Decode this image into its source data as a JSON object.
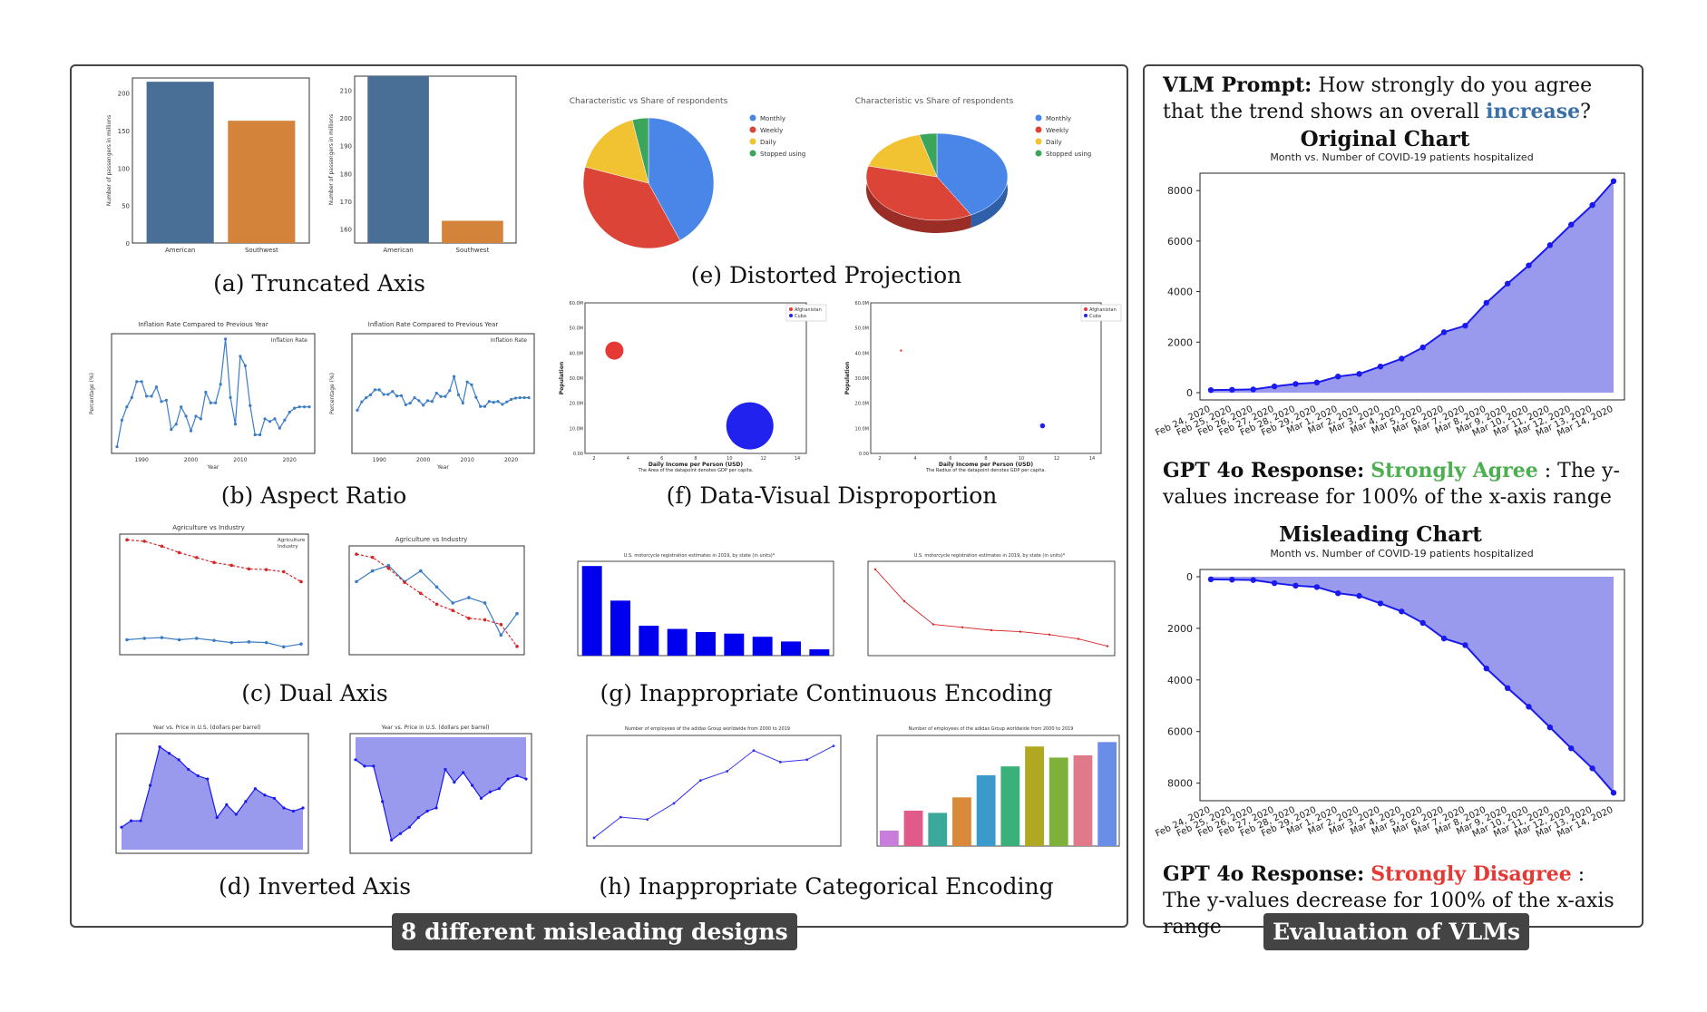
{
  "left": {
    "badge": "8 different misleading designs",
    "captions": {
      "a": "(a) Truncated Axis",
      "b": "(b) Aspect Ratio",
      "c": "(c) Dual Axis",
      "d": "(d) Inverted Axis",
      "e": "(e) Distorted Projection",
      "f": "(f) Data-Visual Disproportion",
      "g": "(g) Inappropriate Continuous Encoding",
      "h": "(h) Inappropriate Categorical Encoding"
    },
    "pie_title": "Characteristic vs Share of respondents",
    "pie_legend": [
      "Monthly",
      "Weekly",
      "Daily",
      "Stopped using"
    ],
    "pie_colors": [
      "#4a86e8",
      "#db4437",
      "#f1c232",
      "#3ca55c"
    ],
    "pie_values": [
      42,
      37,
      17,
      4
    ],
    "bubble_legend": [
      "Afghanistan",
      "Cuba"
    ],
    "bubble_xlabel": "Daily Income per Person (USD)",
    "bubble_ylabel": "Population",
    "bubble_note_area": "The Area of the datapoint denotes GDP per capita.",
    "bubble_note_radius": "The Radius of the datapoint denotes GDP per capita.",
    "bubble_yticks": [
      "0.00",
      "10.0M",
      "20.0M",
      "30.0M",
      "40.0M",
      "50.0M",
      "60.0M"
    ],
    "bubble_xticks": [
      "2",
      "4",
      "6",
      "8",
      "10",
      "12",
      "14"
    ],
    "bar_ticks_a_full": [
      "0",
      "50",
      "100",
      "150",
      "200"
    ],
    "bar_ticks_a_trunc": [
      "160",
      "170",
      "180",
      "190",
      "200",
      "210"
    ],
    "bar_ylabel": "Number of passengers in millions",
    "bar_categories": [
      "American",
      "Southwest"
    ],
    "inflation_title": "Inflation Rate Compared to Previous Year",
    "inflation_legend": "Inflation Rate",
    "inflation_ylabel": "Percentage (%)",
    "inflation_xlabel": "Year",
    "dual_title": "Agriculture vs Industry",
    "dual_legend": [
      "Agriculture",
      "Industry"
    ],
    "inverted_title": "Year vs. Price in U.S. (dollars per barrel)",
    "moto_title": "U.S. motorcycle registration estimates in 2019, by state (in units)*",
    "adidas_title": "Number of employees of the adidas Group worldwide from 2000 to 2019"
  },
  "right": {
    "badge": "Evaluation of VLMs",
    "prompt_label": "VLM Prompt:",
    "prompt_text": "How strongly do you agree that the trend shows an overall",
    "prompt_keyword": "increase",
    "prompt_end": "?",
    "original_heading": "Original Chart",
    "misleading_heading": "Misleading Chart",
    "chart_title": "Month vs. Number of COVID-19 patients hospitalized",
    "response_label": "GPT 4o Response:",
    "response1_verdict": "Strongly Agree",
    "response1_text": " : The y-values increase for 100% of the x-axis range",
    "response2_verdict": "Strongly Disagree",
    "response2_text": " : The y-values decrease for 100% of the x-axis range",
    "colors": {
      "fill": "#9999ee",
      "line": "#1a1aee",
      "agree": "#4caf50",
      "disagree": "#e53935",
      "keyword": "#3a6fa8"
    }
  },
  "chart_data": [
    {
      "type": "area",
      "title": "Month vs. Number of COVID-19 patients hospitalized",
      "xlabel": "",
      "ylabel": "",
      "categories": [
        "Feb 24, 2020",
        "Feb 25, 2020",
        "Feb 26, 2020",
        "Feb 27, 2020",
        "Feb 28, 2020",
        "Feb 29, 2020",
        "Mar 1, 2020",
        "Mar 2, 2020",
        "Mar 3, 2020",
        "Mar 4, 2020",
        "Mar 5, 2020",
        "Mar 6, 2020",
        "Mar 7, 2020",
        "Mar 8, 2020",
        "Mar 9, 2020",
        "Mar 10, 2020",
        "Mar 11, 2020",
        "Mar 12, 2020",
        "Mar 13, 2020",
        "Mar 14, 2020"
      ],
      "values": [
        101,
        114,
        128,
        248,
        345,
        401,
        639,
        742,
        1034,
        1346,
        1790,
        2394,
        2651,
        3557,
        4316,
        5038,
        5838,
        6650,
        7426,
        8372
      ],
      "yticks": [
        "0",
        "2000",
        "4000",
        "6000",
        "8000"
      ],
      "ylim": [
        0,
        8400
      ],
      "inverted": false,
      "grid": false
    },
    {
      "type": "area",
      "title": "Month vs. Number of COVID-19 patients hospitalized",
      "xlabel": "",
      "ylabel": "",
      "categories": [
        "Feb 24, 2020",
        "Feb 25, 2020",
        "Feb 26, 2020",
        "Feb 27, 2020",
        "Feb 28, 2020",
        "Feb 29, 2020",
        "Mar 1, 2020",
        "Mar 2, 2020",
        "Mar 3, 2020",
        "Mar 4, 2020",
        "Mar 5, 2020",
        "Mar 6, 2020",
        "Mar 7, 2020",
        "Mar 8, 2020",
        "Mar 9, 2020",
        "Mar 10, 2020",
        "Mar 11, 2020",
        "Mar 12, 2020",
        "Mar 13, 2020",
        "Mar 14, 2020"
      ],
      "values": [
        101,
        114,
        128,
        248,
        345,
        401,
        639,
        742,
        1034,
        1346,
        1790,
        2394,
        2651,
        3557,
        4316,
        5038,
        5838,
        6650,
        7426,
        8372
      ],
      "yticks": [
        "0",
        "2000",
        "4000",
        "6000",
        "8000"
      ],
      "ylim": [
        0,
        8400
      ],
      "inverted": true,
      "grid": false
    },
    {
      "type": "bar",
      "categories": [
        "American",
        "Southwest"
      ],
      "values": [
        215,
        163
      ],
      "ylabel": "Number of passengers in millions",
      "ylim": [
        0,
        220
      ]
    },
    {
      "type": "pie",
      "title": "Characteristic vs Share of respondents",
      "categories": [
        "Monthly",
        "Weekly",
        "Daily",
        "Stopped using"
      ],
      "values": [
        42,
        37,
        17,
        4
      ]
    },
    {
      "type": "bar",
      "title": "U.S. motorcycle registration estimates in 2019, by state (in units)*",
      "values": [
        820000,
        600000,
        440000,
        420000,
        400000,
        390000,
        370000,
        340000,
        290000
      ]
    },
    {
      "type": "line",
      "title": "Number of employees of the adidas Group worldwide from 2000 to 2019",
      "values": [
        17000,
        26000,
        25000,
        32000,
        42000,
        46000,
        55000,
        50000,
        51000,
        57000
      ]
    },
    {
      "type": "line",
      "title": "Inflation Rate Compared to Previous Year",
      "x": [
        1985,
        1986,
        1987,
        1988,
        1989,
        1990,
        1991,
        1992,
        1993,
        1994,
        1995,
        1996,
        1997,
        1998,
        1999,
        2000,
        2001,
        2002,
        2003,
        2004,
        2005,
        2006,
        2007,
        2008,
        2009,
        2010,
        2011,
        2012,
        2013,
        2014,
        2015,
        2016,
        2017,
        2018,
        2019,
        2020,
        2021,
        2022,
        2023,
        2024
      ],
      "values": [
        -1.5,
        0.5,
        1.5,
        2.2,
        3.4,
        3.4,
        2.3,
        2.3,
        3.0,
        1.9,
        2.0,
        -0.2,
        0.2,
        1.5,
        0.8,
        -0.3,
        0.8,
        0.6,
        2.6,
        1.8,
        1.8,
        3.2,
        6.6,
        2.2,
        0.2,
        5.3,
        4.6,
        1.6,
        -0.6,
        -0.6,
        0.6,
        0.4,
        0.6,
        -0.1,
        0.5,
        1.1,
        1.4,
        1.5,
        1.5,
        1.5
      ]
    },
    {
      "type": "line",
      "title": "Agriculture vs Industry",
      "categories": [
        "2009",
        "2010",
        "2011",
        "2012",
        "2013",
        "2014",
        "2015",
        "2016",
        "2017",
        "2018",
        "2019"
      ],
      "series": [
        {
          "name": "Agriculture",
          "values": [
            16.6,
            16.8,
            16.9,
            16.6,
            16.8,
            16.5,
            16.2,
            16.3,
            16.2,
            15.6,
            16.0
          ]
        },
        {
          "name": "Industry",
          "values": [
            30.7,
            30.5,
            29.8,
            28.9,
            28.2,
            27.5,
            27.1,
            26.6,
            26.5,
            26.2,
            24.8
          ]
        }
      ]
    },
    {
      "type": "area",
      "title": "Year vs. Price in U.S. (dollars per barrel)",
      "values": [
        12,
        14,
        14,
        25,
        37,
        35,
        33,
        30,
        28,
        27,
        15,
        19,
        16,
        20,
        24,
        22,
        21,
        18,
        17,
        18
      ]
    }
  ]
}
